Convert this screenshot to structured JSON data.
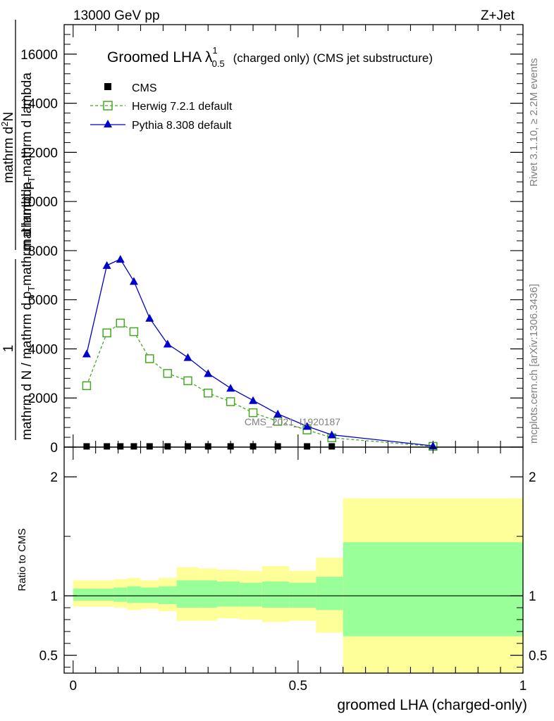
{
  "header": {
    "left": "13000 GeV pp",
    "right": "Z+Jet"
  },
  "side_labels": {
    "rivet": "Rivet 3.1.10, ≥ 2.2M events",
    "mcplots": "mcplots.cern.ch [arXiv:1306.3436]"
  },
  "chart_data": [
    {
      "type": "line",
      "title": "Groomed LHA",
      "title_symbol": "λ",
      "title_sup": "1",
      "title_sub": "0.5",
      "title_suffix": "(charged only) (CMS jet substructure)",
      "watermark": "CMS_2021_I1920187",
      "ylabel_num": "1",
      "ylabel_den": "mathrm d N / mathrm d p",
      "ylabel_den_sub": "T",
      "ylabel_den_tail": "mathrm d lambda",
      "ylabel_num_line1": "mathrm d",
      "ylabel_num_line1_sup": "2",
      "ylabel_num_line1_tail": "N",
      "ylabel_den_line2": "mathrm d p",
      "ylabel_den_line2_sub": "T",
      "ylabel_den_line2_tail": "mathrm d lambda",
      "ylim": [
        0,
        17200
      ],
      "xlim": [
        -0.02,
        1.0
      ],
      "yticks": [
        0,
        2000,
        4000,
        6000,
        8000,
        10000,
        12000,
        14000,
        16000
      ],
      "ytick_labels": [
        "0",
        "2000",
        "4000",
        "6000",
        "8000",
        "10000",
        "12000",
        "14000",
        "16000"
      ],
      "legend_position": "top-left",
      "series": [
        {
          "name": "CMS",
          "color": "#000000",
          "marker": "square-filled",
          "x": [
            0.03,
            0.075,
            0.105,
            0.135,
            0.17,
            0.21,
            0.255,
            0.3,
            0.35,
            0.4,
            0.455,
            0.52,
            0.575
          ],
          "y": [
            30,
            30,
            30,
            30,
            30,
            30,
            30,
            30,
            30,
            30,
            30,
            30,
            30
          ]
        },
        {
          "name": "Herwig 7.2.1 default",
          "color": "#44aa22",
          "marker": "square-open",
          "dashed": true,
          "x": [
            0.03,
            0.075,
            0.105,
            0.135,
            0.17,
            0.21,
            0.255,
            0.3,
            0.35,
            0.4,
            0.455,
            0.52,
            0.575,
            0.8
          ],
          "y": [
            2500,
            4650,
            5050,
            4700,
            3600,
            3000,
            2700,
            2200,
            1850,
            1400,
            1050,
            700,
            380,
            30
          ]
        },
        {
          "name": "Pythia 8.308 default",
          "color": "#0000cc",
          "marker": "triangle",
          "dashed": false,
          "x": [
            0.03,
            0.075,
            0.105,
            0.135,
            0.17,
            0.21,
            0.255,
            0.3,
            0.35,
            0.4,
            0.455,
            0.52,
            0.575,
            0.8
          ],
          "y": [
            3800,
            7400,
            7650,
            6750,
            5250,
            4200,
            3650,
            3000,
            2400,
            1900,
            1350,
            850,
            500,
            50
          ]
        }
      ]
    },
    {
      "type": "area",
      "ylabel": "Ratio to CMS",
      "xlabel": "groomed LHA (charged-only)",
      "ylim": [
        0.35,
        2.25
      ],
      "xlim": [
        -0.02,
        1.0
      ],
      "yticks": [
        0.5,
        1,
        2
      ],
      "ytick_labels": [
        "0.5",
        "1",
        "2"
      ],
      "xticks": [
        0,
        0.5,
        1
      ],
      "xtick_labels": [
        "0",
        "0.5",
        "1"
      ],
      "bins": [
        {
          "x0": 0.0,
          "x1": 0.06,
          "inner": [
            0.96,
            1.06
          ],
          "outer": [
            0.91,
            1.13
          ]
        },
        {
          "x0": 0.06,
          "x1": 0.09,
          "inner": [
            0.96,
            1.06
          ],
          "outer": [
            0.91,
            1.13
          ]
        },
        {
          "x0": 0.09,
          "x1": 0.12,
          "inner": [
            0.95,
            1.07
          ],
          "outer": [
            0.9,
            1.14
          ]
        },
        {
          "x0": 0.12,
          "x1": 0.15,
          "inner": [
            0.94,
            1.08
          ],
          "outer": [
            0.88,
            1.15
          ]
        },
        {
          "x0": 0.15,
          "x1": 0.19,
          "inner": [
            0.94,
            1.07
          ],
          "outer": [
            0.89,
            1.13
          ]
        },
        {
          "x0": 0.19,
          "x1": 0.23,
          "inner": [
            0.93,
            1.08
          ],
          "outer": [
            0.87,
            1.15
          ]
        },
        {
          "x0": 0.23,
          "x1": 0.28,
          "inner": [
            0.9,
            1.13
          ],
          "outer": [
            0.79,
            1.24
          ]
        },
        {
          "x0": 0.28,
          "x1": 0.32,
          "inner": [
            0.9,
            1.13
          ],
          "outer": [
            0.79,
            1.23
          ]
        },
        {
          "x0": 0.32,
          "x1": 0.37,
          "inner": [
            0.91,
            1.12
          ],
          "outer": [
            0.81,
            1.22
          ]
        },
        {
          "x0": 0.37,
          "x1": 0.42,
          "inner": [
            0.91,
            1.11
          ],
          "outer": [
            0.8,
            1.21
          ]
        },
        {
          "x0": 0.42,
          "x1": 0.48,
          "inner": [
            0.9,
            1.12
          ],
          "outer": [
            0.78,
            1.25
          ]
        },
        {
          "x0": 0.48,
          "x1": 0.54,
          "inner": [
            0.9,
            1.11
          ],
          "outer": [
            0.79,
            1.21
          ]
        },
        {
          "x0": 0.54,
          "x1": 0.6,
          "inner": [
            0.88,
            1.16
          ],
          "outer": [
            0.69,
            1.32
          ]
        },
        {
          "x0": 0.6,
          "x1": 1.0,
          "inner": [
            0.66,
            1.45
          ],
          "outer": [
            0.35,
            1.82
          ]
        }
      ],
      "band_colors": {
        "inner": "#99ff99",
        "outer": "#ffff99"
      }
    }
  ]
}
